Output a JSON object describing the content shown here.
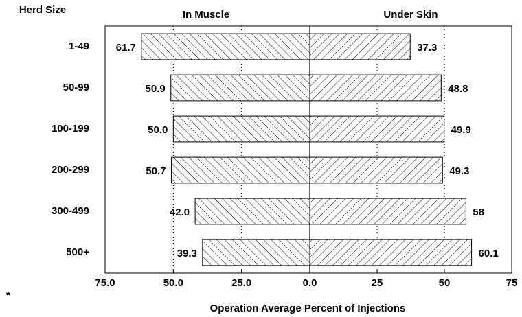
{
  "chart_data": {
    "type": "butterfly",
    "row_header": "Herd Size",
    "xlabel": "Operation Average Percent of Injections",
    "footnote_marker": "*",
    "categories": [
      "1-49",
      "50-99",
      "100-199",
      "200-299",
      "300-499",
      "500+"
    ],
    "series": [
      {
        "name": "In Muscle",
        "side": "left",
        "hatch": "backslash",
        "color": "#000000",
        "values": [
          61.7,
          50.9,
          50.0,
          50.7,
          42.0,
          39.3
        ],
        "value_labels": [
          "61.7",
          "50.9",
          "50.0",
          "50.7",
          "42.0",
          "39.3"
        ]
      },
      {
        "name": "Under Skin",
        "side": "right",
        "hatch": "slash",
        "color": "#000000",
        "values": [
          37.3,
          48.8,
          49.9,
          49.3,
          58,
          60.1
        ]
      }
    ],
    "xlim_left": [
      75,
      0
    ],
    "xticks_left": [
      {
        "value": 75,
        "label": "75.0"
      },
      {
        "value": 50,
        "label": "50.0"
      },
      {
        "value": 25,
        "label": "25.0"
      },
      {
        "value": 0,
        "label": "0.0"
      }
    ],
    "xlim_right": [
      0,
      75
    ],
    "xticks_right": [
      25,
      50,
      75
    ],
    "grid": true
  }
}
